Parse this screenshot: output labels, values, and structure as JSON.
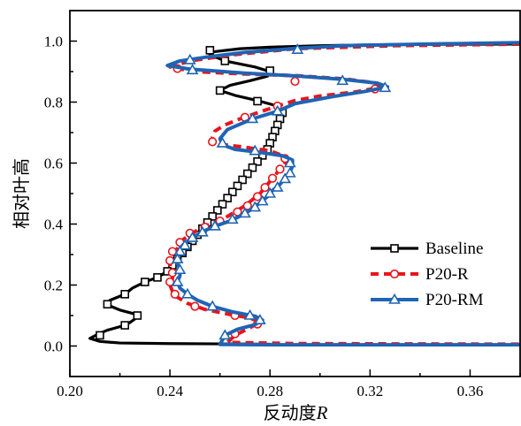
{
  "chart_data": {
    "type": "line",
    "title": "",
    "xlabel": "反动度",
    "xlabel_var": "R",
    "ylabel": "相对叶高",
    "xlim": [
      0.2,
      0.38
    ],
    "ylim": [
      -0.1,
      1.1
    ],
    "xticks": [
      "0.20",
      "0.24",
      "0.28",
      "0.32",
      "0.36"
    ],
    "xtick_values": [
      0.2,
      0.24,
      0.28,
      0.32,
      0.36
    ],
    "yticks": [
      "0.0",
      "0.2",
      "0.4",
      "0.6",
      "0.8",
      "1.0"
    ],
    "ytick_values": [
      0.0,
      0.2,
      0.4,
      0.6,
      0.8,
      1.0
    ],
    "grid": false,
    "legend_position": "bottom-right",
    "series": [
      {
        "name": "Baseline",
        "color": "#000000",
        "dash": "solid",
        "marker": "square",
        "marker_fill": "#ffffff",
        "points": [
          [
            0.38,
            0.99
          ],
          [
            0.33,
            0.989
          ],
          [
            0.3,
            0.985
          ],
          [
            0.28,
            0.98
          ],
          [
            0.268,
            0.975
          ],
          [
            0.2575,
            0.965
          ],
          [
            0.256,
            0.955
          ],
          [
            0.262,
            0.935
          ],
          [
            0.274,
            0.915
          ],
          [
            0.28,
            0.9
          ],
          [
            0.279,
            0.885
          ],
          [
            0.272,
            0.87
          ],
          [
            0.264,
            0.855
          ],
          [
            0.26,
            0.838
          ],
          [
            0.266,
            0.822
          ],
          [
            0.275,
            0.805
          ],
          [
            0.283,
            0.787
          ],
          [
            0.285,
            0.765
          ],
          [
            0.284,
            0.745
          ],
          [
            0.283,
            0.725
          ],
          [
            0.282,
            0.705
          ],
          [
            0.281,
            0.685
          ],
          [
            0.28,
            0.665
          ],
          [
            0.279,
            0.645
          ],
          [
            0.277,
            0.625
          ],
          [
            0.275,
            0.605
          ],
          [
            0.273,
            0.585
          ],
          [
            0.271,
            0.565
          ],
          [
            0.269,
            0.545
          ],
          [
            0.267,
            0.525
          ],
          [
            0.265,
            0.505
          ],
          [
            0.263,
            0.485
          ],
          [
            0.261,
            0.465
          ],
          [
            0.259,
            0.445
          ],
          [
            0.257,
            0.425
          ],
          [
            0.255,
            0.405
          ],
          [
            0.253,
            0.385
          ],
          [
            0.251,
            0.365
          ],
          [
            0.249,
            0.345
          ],
          [
            0.247,
            0.325
          ],
          [
            0.245,
            0.305
          ],
          [
            0.243,
            0.285
          ],
          [
            0.241,
            0.265
          ],
          [
            0.239,
            0.245
          ],
          [
            0.235,
            0.225
          ],
          [
            0.23,
            0.21
          ],
          [
            0.225,
            0.19
          ],
          [
            0.222,
            0.17
          ],
          [
            0.216,
            0.15
          ],
          [
            0.215,
            0.135
          ],
          [
            0.22,
            0.118
          ],
          [
            0.226,
            0.105
          ],
          [
            0.227,
            0.095
          ],
          [
            0.224,
            0.077
          ],
          [
            0.222,
            0.068
          ],
          [
            0.215,
            0.052
          ],
          [
            0.211,
            0.038
          ],
          [
            0.208,
            0.025
          ],
          [
            0.212,
            0.015
          ],
          [
            0.22,
            0.01
          ],
          [
            0.24,
            0.008
          ],
          [
            0.26,
            0.007
          ],
          [
            0.28,
            0.006
          ]
        ],
        "markers": [
          [
            0.256,
            0.97
          ],
          [
            0.262,
            0.935
          ],
          [
            0.28,
            0.903
          ],
          [
            0.26,
            0.838
          ],
          [
            0.275,
            0.803
          ],
          [
            0.285,
            0.765
          ],
          [
            0.284,
            0.745
          ],
          [
            0.283,
            0.725
          ],
          [
            0.282,
            0.705
          ],
          [
            0.281,
            0.685
          ],
          [
            0.28,
            0.665
          ],
          [
            0.279,
            0.645
          ],
          [
            0.277,
            0.625
          ],
          [
            0.275,
            0.605
          ],
          [
            0.273,
            0.585
          ],
          [
            0.271,
            0.565
          ],
          [
            0.269,
            0.545
          ],
          [
            0.267,
            0.525
          ],
          [
            0.265,
            0.505
          ],
          [
            0.263,
            0.485
          ],
          [
            0.261,
            0.465
          ],
          [
            0.259,
            0.445
          ],
          [
            0.257,
            0.425
          ],
          [
            0.255,
            0.405
          ],
          [
            0.253,
            0.385
          ],
          [
            0.251,
            0.365
          ],
          [
            0.249,
            0.345
          ],
          [
            0.247,
            0.325
          ],
          [
            0.245,
            0.305
          ],
          [
            0.243,
            0.285
          ],
          [
            0.241,
            0.265
          ],
          [
            0.239,
            0.245
          ],
          [
            0.235,
            0.225
          ],
          [
            0.23,
            0.21
          ],
          [
            0.222,
            0.17
          ],
          [
            0.215,
            0.137
          ],
          [
            0.227,
            0.1
          ],
          [
            0.222,
            0.068
          ],
          [
            0.212,
            0.035
          ]
        ]
      },
      {
        "name": "P20-R",
        "color": "#e8141b",
        "dash": "dashed",
        "marker": "circle",
        "marker_fill": "#ffffff",
        "points": [
          [
            0.38,
            0.99
          ],
          [
            0.33,
            0.985
          ],
          [
            0.29,
            0.975
          ],
          [
            0.265,
            0.955
          ],
          [
            0.248,
            0.935
          ],
          [
            0.24,
            0.915
          ],
          [
            0.25,
            0.9
          ],
          [
            0.27,
            0.892
          ],
          [
            0.29,
            0.887
          ],
          [
            0.31,
            0.876
          ],
          [
            0.322,
            0.863
          ],
          [
            0.324,
            0.848
          ],
          [
            0.314,
            0.833
          ],
          [
            0.3,
            0.82
          ],
          [
            0.29,
            0.805
          ],
          [
            0.283,
            0.787
          ],
          [
            0.275,
            0.765
          ],
          [
            0.268,
            0.745
          ],
          [
            0.262,
            0.725
          ],
          [
            0.258,
            0.705
          ],
          [
            0.257,
            0.685
          ],
          [
            0.257,
            0.668
          ],
          [
            0.262,
            0.66
          ],
          [
            0.27,
            0.652
          ],
          [
            0.28,
            0.64
          ],
          [
            0.286,
            0.622
          ],
          [
            0.286,
            0.6
          ],
          [
            0.284,
            0.58
          ],
          [
            0.282,
            0.56
          ],
          [
            0.28,
            0.54
          ],
          [
            0.278,
            0.52
          ],
          [
            0.276,
            0.5
          ],
          [
            0.273,
            0.48
          ],
          [
            0.27,
            0.46
          ],
          [
            0.266,
            0.44
          ],
          [
            0.262,
            0.42
          ],
          [
            0.256,
            0.4
          ],
          [
            0.251,
            0.38
          ],
          [
            0.247,
            0.36
          ],
          [
            0.244,
            0.34
          ],
          [
            0.243,
            0.32
          ],
          [
            0.241,
            0.3
          ],
          [
            0.24,
            0.28
          ],
          [
            0.24,
            0.26
          ],
          [
            0.241,
            0.24
          ],
          [
            0.241,
            0.22
          ],
          [
            0.24,
            0.2
          ],
          [
            0.241,
            0.18
          ],
          [
            0.243,
            0.16
          ],
          [
            0.247,
            0.14
          ],
          [
            0.254,
            0.12
          ],
          [
            0.263,
            0.105
          ],
          [
            0.272,
            0.092
          ],
          [
            0.276,
            0.078
          ],
          [
            0.272,
            0.06
          ],
          [
            0.266,
            0.035
          ],
          [
            0.263,
            0.012
          ],
          [
            0.29,
            0.008
          ],
          [
            0.33,
            0.007
          ],
          [
            0.38,
            0.006
          ]
        ],
        "markers": [
          [
            0.243,
            0.91
          ],
          [
            0.29,
            0.868
          ],
          [
            0.322,
            0.843
          ],
          [
            0.283,
            0.787
          ],
          [
            0.27,
            0.75
          ],
          [
            0.257,
            0.67
          ],
          [
            0.286,
            0.615
          ],
          [
            0.284,
            0.58
          ],
          [
            0.281,
            0.55
          ],
          [
            0.278,
            0.52
          ],
          [
            0.275,
            0.49
          ],
          [
            0.271,
            0.46
          ],
          [
            0.267,
            0.44
          ],
          [
            0.26,
            0.41
          ],
          [
            0.254,
            0.39
          ],
          [
            0.248,
            0.37
          ],
          [
            0.244,
            0.34
          ],
          [
            0.241,
            0.31
          ],
          [
            0.24,
            0.28
          ],
          [
            0.241,
            0.24
          ],
          [
            0.24,
            0.21
          ],
          [
            0.242,
            0.17
          ],
          [
            0.25,
            0.13
          ],
          [
            0.266,
            0.1
          ],
          [
            0.275,
            0.072
          ],
          [
            0.266,
            0.04
          ]
        ]
      },
      {
        "name": "P20-RM",
        "color": "#1f64b4",
        "dash": "solid",
        "marker": "triangle",
        "marker_fill": "#ffffff",
        "points": [
          [
            0.38,
            0.995
          ],
          [
            0.34,
            0.99
          ],
          [
            0.31,
            0.985
          ],
          [
            0.29,
            0.976
          ],
          [
            0.27,
            0.963
          ],
          [
            0.255,
            0.948
          ],
          [
            0.244,
            0.935
          ],
          [
            0.239,
            0.92
          ],
          [
            0.248,
            0.908
          ],
          [
            0.27,
            0.895
          ],
          [
            0.29,
            0.886
          ],
          [
            0.31,
            0.874
          ],
          [
            0.323,
            0.862
          ],
          [
            0.327,
            0.85
          ],
          [
            0.318,
            0.835
          ],
          [
            0.305,
            0.818
          ],
          [
            0.29,
            0.795
          ],
          [
            0.283,
            0.77
          ],
          [
            0.273,
            0.745
          ],
          [
            0.263,
            0.71
          ],
          [
            0.26,
            0.68
          ],
          [
            0.261,
            0.66
          ],
          [
            0.266,
            0.645
          ],
          [
            0.276,
            0.635
          ],
          [
            0.285,
            0.624
          ],
          [
            0.289,
            0.61
          ],
          [
            0.289,
            0.59
          ],
          [
            0.288,
            0.57
          ],
          [
            0.286,
            0.55
          ],
          [
            0.284,
            0.53
          ],
          [
            0.281,
            0.51
          ],
          [
            0.279,
            0.49
          ],
          [
            0.276,
            0.47
          ],
          [
            0.273,
            0.45
          ],
          [
            0.269,
            0.43
          ],
          [
            0.264,
            0.41
          ],
          [
            0.257,
            0.39
          ],
          [
            0.252,
            0.37
          ],
          [
            0.248,
            0.35
          ],
          [
            0.245,
            0.33
          ],
          [
            0.244,
            0.31
          ],
          [
            0.243,
            0.29
          ],
          [
            0.243,
            0.27
          ],
          [
            0.244,
            0.25
          ],
          [
            0.244,
            0.23
          ],
          [
            0.243,
            0.21
          ],
          [
            0.244,
            0.19
          ],
          [
            0.247,
            0.17
          ],
          [
            0.251,
            0.15
          ],
          [
            0.257,
            0.13
          ],
          [
            0.265,
            0.112
          ],
          [
            0.274,
            0.098
          ],
          [
            0.277,
            0.085
          ],
          [
            0.274,
            0.07
          ],
          [
            0.267,
            0.055
          ],
          [
            0.262,
            0.035
          ],
          [
            0.26,
            0.005
          ],
          [
            0.28,
            0.004
          ],
          [
            0.32,
            0.004
          ],
          [
            0.38,
            0.004
          ]
        ],
        "markers": [
          [
            0.291,
            0.972
          ],
          [
            0.249,
            0.905
          ],
          [
            0.248,
            0.938
          ],
          [
            0.309,
            0.87
          ],
          [
            0.326,
            0.847
          ],
          [
            0.283,
            0.77
          ],
          [
            0.273,
            0.745
          ],
          [
            0.261,
            0.665
          ],
          [
            0.274,
            0.64
          ],
          [
            0.288,
            0.6
          ],
          [
            0.288,
            0.567
          ],
          [
            0.286,
            0.548
          ],
          [
            0.283,
            0.52
          ],
          [
            0.28,
            0.5
          ],
          [
            0.277,
            0.475
          ],
          [
            0.274,
            0.455
          ],
          [
            0.27,
            0.435
          ],
          [
            0.265,
            0.415
          ],
          [
            0.258,
            0.393
          ],
          [
            0.253,
            0.373
          ],
          [
            0.249,
            0.355
          ],
          [
            0.246,
            0.33
          ],
          [
            0.244,
            0.31
          ],
          [
            0.243,
            0.285
          ],
          [
            0.244,
            0.25
          ],
          [
            0.243,
            0.21
          ],
          [
            0.247,
            0.17
          ],
          [
            0.257,
            0.13
          ],
          [
            0.272,
            0.1
          ],
          [
            0.276,
            0.085
          ],
          [
            0.262,
            0.035
          ]
        ]
      }
    ]
  }
}
